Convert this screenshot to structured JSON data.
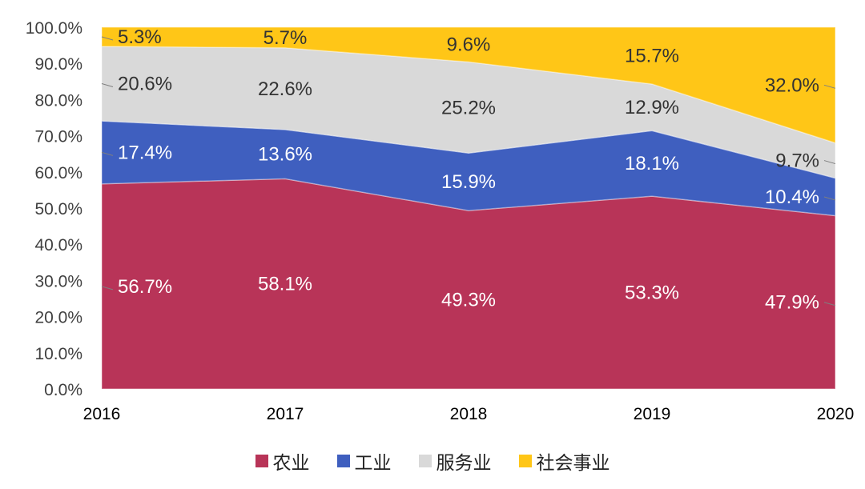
{
  "chart_data": {
    "type": "area",
    "stacked": true,
    "normalized": true,
    "categories": [
      "2016",
      "2017",
      "2018",
      "2019",
      "2020"
    ],
    "ylim": [
      0,
      100
    ],
    "yticks": [
      "0.0%",
      "10.0%",
      "20.0%",
      "30.0%",
      "40.0%",
      "50.0%",
      "60.0%",
      "70.0%",
      "80.0%",
      "90.0%",
      "100.0%"
    ],
    "series": [
      {
        "name": "农业",
        "color": "#B83458",
        "labelColor": "#ffffff",
        "values": [
          56.7,
          58.1,
          49.3,
          53.3,
          47.9
        ],
        "labels": [
          "56.7%",
          "58.1%",
          "49.3%",
          "53.3%",
          "47.9%"
        ]
      },
      {
        "name": "工业",
        "color": "#3F5FBF",
        "labelColor": "#ffffff",
        "values": [
          17.4,
          13.6,
          15.9,
          18.1,
          10.4
        ],
        "labels": [
          "17.4%",
          "13.6%",
          "15.9%",
          "18.1%",
          "10.4%"
        ]
      },
      {
        "name": "服务业",
        "color": "#D9D9D9",
        "labelColor": "#333333",
        "values": [
          20.6,
          22.6,
          25.2,
          12.9,
          9.7
        ],
        "labels": [
          "20.6%",
          "22.6%",
          "25.2%",
          "12.9%",
          "9.7%"
        ]
      },
      {
        "name": "社会事业",
        "color": "#FFC617",
        "labelColor": "#333333",
        "values": [
          5.3,
          5.7,
          9.6,
          15.7,
          32.0
        ],
        "labels": [
          "5.3%",
          "5.7%",
          "9.6%",
          "15.7%",
          "32.0%"
        ]
      }
    ],
    "legend_position": "bottom"
  }
}
